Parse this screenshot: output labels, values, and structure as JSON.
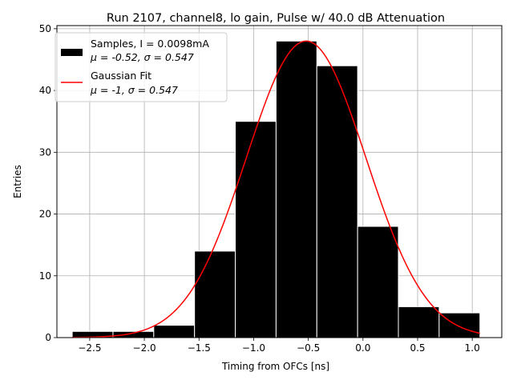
{
  "chart_data": {
    "type": "bar",
    "title": "Run 2107, channel8, lo gain, Pulse w/ 40.0 dB Attenuation",
    "xlabel": "Timing from OFCs [ns]",
    "ylabel": "Entries",
    "xlim": [
      -2.8,
      1.27
    ],
    "ylim": [
      0,
      50.5
    ],
    "xticks": [
      -2.5,
      -2.0,
      -1.5,
      -1.0,
      -0.5,
      0.0,
      0.5,
      1.0
    ],
    "xtick_labels": [
      "−2.5",
      "−2.0",
      "−1.5",
      "−1.0",
      "−0.5",
      "0.0",
      "0.5",
      "1.0"
    ],
    "yticks": [
      0,
      10,
      20,
      30,
      40,
      50
    ],
    "ytick_labels": [
      "0",
      "10",
      "20",
      "30",
      "40",
      "50"
    ],
    "grid": true,
    "legend_position": "top-left",
    "histogram": {
      "name": "Samples, I = 0.0098mA",
      "stats_label": "μ = -0.52, σ = 0.547",
      "color": "#000000",
      "edgecolor": "#ffffff",
      "bin_edges": [
        -2.66,
        -2.287,
        -1.914,
        -1.541,
        -1.168,
        -0.795,
        -0.422,
        -0.049,
        0.324,
        0.697,
        1.07
      ],
      "counts": [
        1,
        1,
        2,
        14,
        35,
        48,
        44,
        18,
        5,
        4
      ]
    },
    "fit": {
      "name": "Gaussian Fit",
      "stats_label": "μ = -1, σ = 0.547",
      "color": "#ff0000",
      "type": "gaussian",
      "amplitude": 48.0,
      "mean": -0.52,
      "sigma": 0.547,
      "x_range": [
        -2.66,
        1.07
      ]
    }
  }
}
